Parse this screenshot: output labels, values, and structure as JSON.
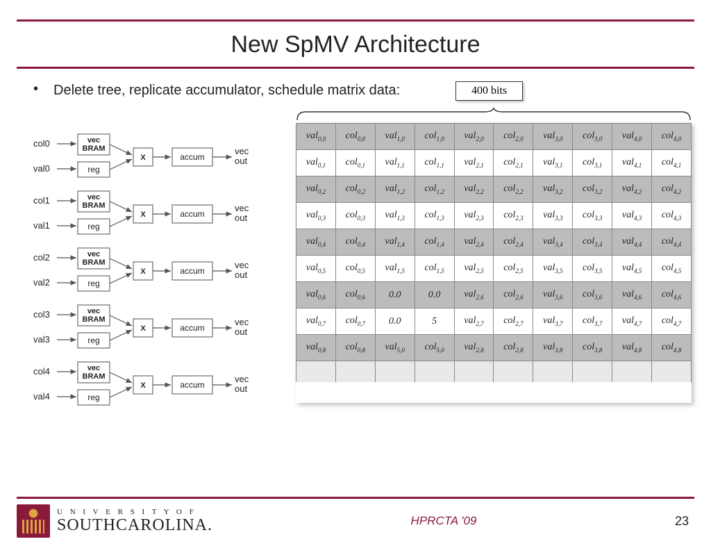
{
  "title": "New SpMV Architecture",
  "bullet": "Delete tree, replicate accumulator, schedule matrix data:",
  "bits_label": "400 bits",
  "lane_count": 5,
  "lane_labels": {
    "col_prefix": "col",
    "val_prefix": "val",
    "vec_top": "vec",
    "bram": "BRAM",
    "reg": "reg",
    "mult": "X",
    "accum": "accum",
    "out_top": "vec",
    "out_bot": "out"
  },
  "table": {
    "cols": 10,
    "row_shading": [
      "shade",
      "plain",
      "shade",
      "plain",
      "shade",
      "plain",
      "shade",
      "plain",
      "shade"
    ],
    "pairs_per_row": 5,
    "cells": [
      [
        [
          "val",
          "0,0"
        ],
        [
          "col",
          "0,0"
        ],
        [
          "val",
          "1,0"
        ],
        [
          "col",
          "1,0"
        ],
        [
          "val",
          "2,0"
        ],
        [
          "col",
          "2,0"
        ],
        [
          "val",
          "3,0"
        ],
        [
          "col",
          "3,0"
        ],
        [
          "val",
          "4,0"
        ],
        [
          "col",
          "4,0"
        ]
      ],
      [
        [
          "val",
          "0,1"
        ],
        [
          "col",
          "0,1"
        ],
        [
          "val",
          "1,1"
        ],
        [
          "col",
          "1,1"
        ],
        [
          "val",
          "2,1"
        ],
        [
          "col",
          "2,1"
        ],
        [
          "val",
          "3,1"
        ],
        [
          "col",
          "3,1"
        ],
        [
          "val",
          "4,1"
        ],
        [
          "col",
          "4,1"
        ]
      ],
      [
        [
          "val",
          "0,2"
        ],
        [
          "col",
          "0,2"
        ],
        [
          "val",
          "1,2"
        ],
        [
          "col",
          "1,2"
        ],
        [
          "val",
          "2,2"
        ],
        [
          "col",
          "2,2"
        ],
        [
          "val",
          "3,2"
        ],
        [
          "col",
          "3,2"
        ],
        [
          "val",
          "4,2"
        ],
        [
          "col",
          "4,2"
        ]
      ],
      [
        [
          "val",
          "0,3"
        ],
        [
          "col",
          "0,3"
        ],
        [
          "val",
          "1,3"
        ],
        [
          "col",
          "1,3"
        ],
        [
          "val",
          "2,3"
        ],
        [
          "col",
          "2,3"
        ],
        [
          "val",
          "3,3"
        ],
        [
          "col",
          "3,3"
        ],
        [
          "val",
          "4,3"
        ],
        [
          "col",
          "4,3"
        ]
      ],
      [
        [
          "val",
          "0,4"
        ],
        [
          "col",
          "0,4"
        ],
        [
          "val",
          "1,4"
        ],
        [
          "col",
          "1,4"
        ],
        [
          "val",
          "2,4"
        ],
        [
          "col",
          "2,4"
        ],
        [
          "val",
          "3,4"
        ],
        [
          "col",
          "3,4"
        ],
        [
          "val",
          "4,4"
        ],
        [
          "col",
          "4,4"
        ]
      ],
      [
        [
          "val",
          "0,5"
        ],
        [
          "col",
          "0,5"
        ],
        [
          "val",
          "1,5"
        ],
        [
          "col",
          "1,5"
        ],
        [
          "val",
          "2,5"
        ],
        [
          "col",
          "2,5"
        ],
        [
          "val",
          "3,5"
        ],
        [
          "col",
          "3,5"
        ],
        [
          "val",
          "4,5"
        ],
        [
          "col",
          "4,5"
        ]
      ],
      [
        [
          "val",
          "0,6"
        ],
        [
          "col",
          "0,6"
        ],
        [
          "lit",
          "0.0"
        ],
        [
          "lit",
          "0.0"
        ],
        [
          "val",
          "2,6"
        ],
        [
          "col",
          "2,6"
        ],
        [
          "val",
          "3,6"
        ],
        [
          "col",
          "3,6"
        ],
        [
          "val",
          "4,6"
        ],
        [
          "col",
          "4,6"
        ]
      ],
      [
        [
          "val",
          "0,7"
        ],
        [
          "col",
          "0,7"
        ],
        [
          "lit",
          "0.0"
        ],
        [
          "lit",
          "5"
        ],
        [
          "val",
          "2,7"
        ],
        [
          "col",
          "2,7"
        ],
        [
          "val",
          "3,7"
        ],
        [
          "col",
          "3,7"
        ],
        [
          "val",
          "4,7"
        ],
        [
          "col",
          "4,7"
        ]
      ],
      [
        [
          "val",
          "0,8"
        ],
        [
          "col",
          "0,8"
        ],
        [
          "val",
          "5,0"
        ],
        [
          "col",
          "5,0"
        ],
        [
          "val",
          "2,8"
        ],
        [
          "col",
          "2,8"
        ],
        [
          "val",
          "3,8"
        ],
        [
          "col",
          "3,8"
        ],
        [
          "val",
          "4,8"
        ],
        [
          "col",
          "4,8"
        ]
      ]
    ]
  },
  "footer": {
    "uni_small": "U N I V E R S I T Y   O F",
    "uni_big": "SOUTHCAROLINA.",
    "conf": "HPRCTA '09",
    "page": "23"
  },
  "colors": {
    "accent": "#8b1a3a",
    "shade": "#bcbcbc"
  }
}
